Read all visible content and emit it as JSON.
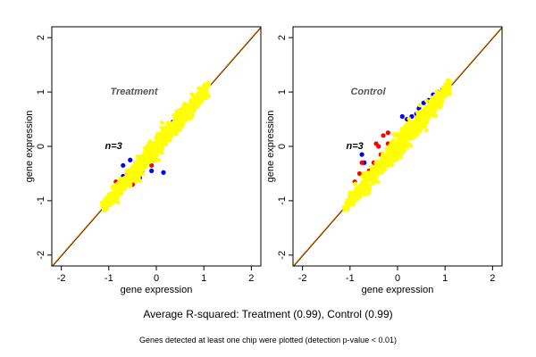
{
  "chart_data": [
    {
      "type": "scatter",
      "panel_label": "Treatment",
      "n_label": "n=3",
      "xlabel": "gene expression",
      "ylabel": "gene expression",
      "xlim": [
        -2.2,
        2.2
      ],
      "ylim": [
        -2.2,
        2.2
      ],
      "xticks": [
        -2,
        -1,
        0,
        1,
        2
      ],
      "yticks": [
        -2,
        -1,
        0,
        1,
        2
      ],
      "grid": false,
      "reference_lines": [
        "y = x"
      ],
      "series": [
        {
          "color": "#0000ff",
          "points": [
            [
              -0.7,
              -0.35
            ],
            [
              -0.55,
              -0.5
            ],
            [
              -0.45,
              -0.55
            ],
            [
              -0.35,
              -0.58
            ],
            [
              -0.3,
              -0.2
            ],
            [
              -0.1,
              -0.45
            ],
            [
              0.15,
              -0.48
            ],
            [
              0.15,
              0.05
            ],
            [
              0.25,
              0.25
            ],
            [
              0.3,
              0.4
            ],
            [
              0.35,
              0.45
            ],
            [
              0.1,
              0.2
            ],
            [
              -0.55,
              -0.25
            ],
            [
              -0.7,
              -0.55
            ],
            [
              -0.5,
              -0.62
            ],
            [
              -0.2,
              -0.1
            ]
          ]
        },
        {
          "color": "#ff0000",
          "points": [
            [
              -0.95,
              -0.9
            ],
            [
              -0.9,
              -0.75
            ],
            [
              -0.85,
              -0.65
            ],
            [
              -0.75,
              -0.72
            ],
            [
              -0.65,
              -0.6
            ],
            [
              -0.5,
              -0.7
            ],
            [
              -0.4,
              -0.55
            ],
            [
              -0.3,
              -0.45
            ],
            [
              -0.2,
              -0.25
            ],
            [
              -0.05,
              -0.25
            ],
            [
              0.1,
              -0.02
            ],
            [
              0.2,
              0.15
            ],
            [
              -0.8,
              -0.8
            ],
            [
              -0.6,
              -0.5
            ],
            [
              0.3,
              0.35
            ],
            [
              -0.1,
              -0.35
            ]
          ]
        },
        {
          "color": "#000000",
          "points": [
            [
              -1.0,
              -1.02
            ],
            [
              -0.85,
              -0.88
            ],
            [
              -0.7,
              -0.73
            ],
            [
              -0.55,
              -0.58
            ],
            [
              -0.4,
              -0.42
            ],
            [
              -0.25,
              -0.27
            ],
            [
              -0.1,
              -0.12
            ],
            [
              0.05,
              0.03
            ],
            [
              0.2,
              0.18
            ],
            [
              0.35,
              0.33
            ],
            [
              0.5,
              0.48
            ],
            [
              0.65,
              0.63
            ]
          ]
        }
      ],
      "bulk_colors": [
        "#ffff00"
      ],
      "bulk_center_line": {
        "x": [
          -1.1,
          1.1
        ],
        "y": [
          -1.1,
          1.1
        ]
      }
    },
    {
      "type": "scatter",
      "panel_label": "Control",
      "n_label": "n=3",
      "xlabel": "gene expression",
      "ylabel": "gene expression",
      "xlim": [
        -2.2,
        2.2
      ],
      "ylim": [
        -2.2,
        2.2
      ],
      "xticks": [
        -2,
        -1,
        0,
        1,
        2
      ],
      "yticks": [
        -2,
        -1,
        0,
        1,
        2
      ],
      "grid": false,
      "reference_lines": [
        "y = x"
      ],
      "series": [
        {
          "color": "#0000ff",
          "points": [
            [
              0.2,
              0.5
            ],
            [
              0.3,
              0.55
            ],
            [
              0.45,
              0.7
            ],
            [
              0.55,
              0.8
            ],
            [
              0.65,
              0.85
            ],
            [
              0.75,
              0.95
            ],
            [
              0.1,
              0.55
            ],
            [
              0.4,
              0.6
            ],
            [
              -0.75,
              -0.15
            ],
            [
              -0.7,
              -0.3
            ],
            [
              0.85,
              1.0
            ],
            [
              0.95,
              1.05
            ]
          ]
        },
        {
          "color": "#ff0000",
          "points": [
            [
              -0.9,
              -0.65
            ],
            [
              -0.8,
              -0.5
            ],
            [
              -0.75,
              -0.3
            ],
            [
              -0.7,
              -0.7
            ],
            [
              -0.6,
              -0.45
            ],
            [
              -0.5,
              -0.3
            ],
            [
              -0.4,
              0.0
            ],
            [
              -0.3,
              0.2
            ],
            [
              -0.2,
              0.25
            ],
            [
              -0.35,
              -0.15
            ],
            [
              -0.45,
              0.05
            ],
            [
              -0.2,
              0.05
            ]
          ]
        },
        {
          "color": "#000000",
          "points": [
            [
              -1.0,
              -1.0
            ],
            [
              -0.85,
              -0.85
            ],
            [
              -0.7,
              -0.7
            ],
            [
              -0.55,
              -0.55
            ],
            [
              -0.4,
              -0.4
            ],
            [
              -0.25,
              -0.25
            ],
            [
              -0.1,
              -0.1
            ],
            [
              0.05,
              0.05
            ],
            [
              0.2,
              0.2
            ],
            [
              0.35,
              0.35
            ],
            [
              0.5,
              0.5
            ],
            [
              0.65,
              0.65
            ],
            [
              0.8,
              0.8
            ],
            [
              0.95,
              0.95
            ]
          ]
        }
      ],
      "bulk_colors": [
        "#ffff00"
      ],
      "bulk_center_line": {
        "x": [
          -1.1,
          1.1
        ],
        "y": [
          -1.1,
          1.1
        ]
      }
    }
  ],
  "caption": {
    "main": "Average R-squared: Treatment (0.99), Control (0.99)",
    "footnote": "Genes detected at least one chip were plotted (detection p-value < 0.01)"
  },
  "colors": {
    "diagonal_black": "#000000",
    "diagonal_orange": "#ff8c00",
    "bulk": "#ffff00"
  }
}
